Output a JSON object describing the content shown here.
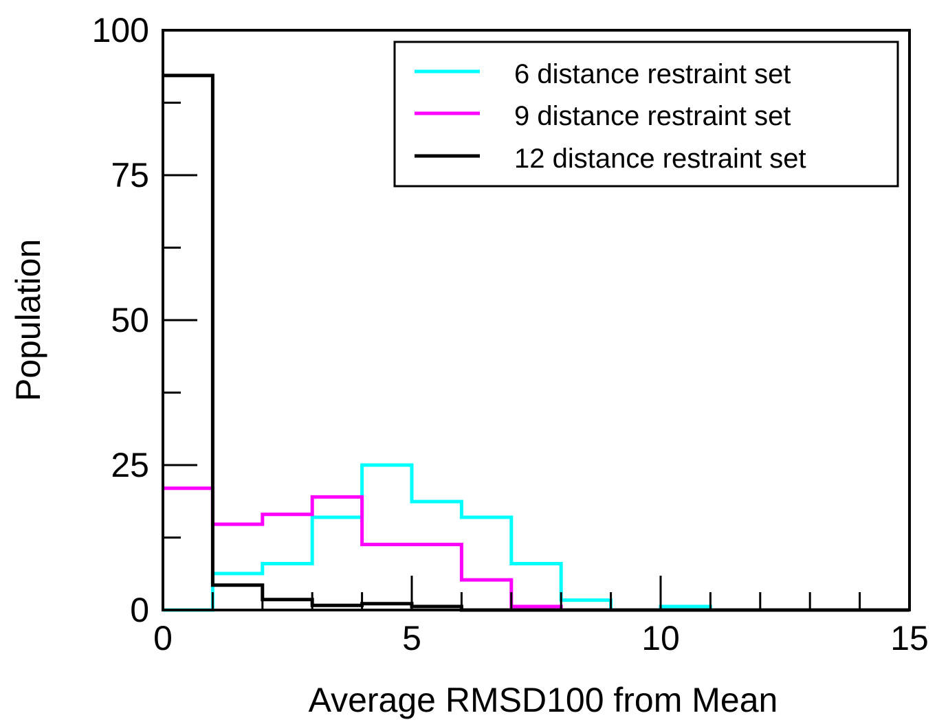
{
  "chart_data": {
    "type": "histogram",
    "xlabel": "Average RMSD100 from Mean",
    "ylabel": "Population",
    "xlim": [
      0,
      15
    ],
    "ylim": [
      0,
      100
    ],
    "xticks": [
      0,
      5,
      10,
      15
    ],
    "yticks": [
      0,
      25,
      50,
      75,
      100
    ],
    "x_minor_step": 1,
    "y_minor_step": 12.5,
    "grid": false,
    "legend_position": "top-right",
    "bin_edges": [
      0,
      1,
      2,
      3,
      4,
      5,
      6,
      7,
      8,
      9,
      10,
      11,
      12,
      13,
      14,
      15
    ],
    "series": [
      {
        "name": "6 distance restraint set",
        "color": "#00ffff",
        "values": [
          0,
          6.3,
          8,
          16,
          25,
          18.7,
          16,
          8,
          1.7,
          0,
          0.6,
          0,
          0,
          0,
          0
        ]
      },
      {
        "name": "9 distance restraint set",
        "color": "#ff00ff",
        "values": [
          21,
          14.8,
          16.5,
          19.5,
          11.3,
          11.3,
          5.2,
          0.6,
          0,
          0,
          0,
          0,
          0,
          0,
          0
        ]
      },
      {
        "name": "12 distance restraint set",
        "color": "#000000",
        "values": [
          92.2,
          4.3,
          1.8,
          0.8,
          1.1,
          0.6,
          0,
          0,
          0,
          0,
          0,
          0,
          0,
          0,
          0
        ]
      }
    ]
  }
}
